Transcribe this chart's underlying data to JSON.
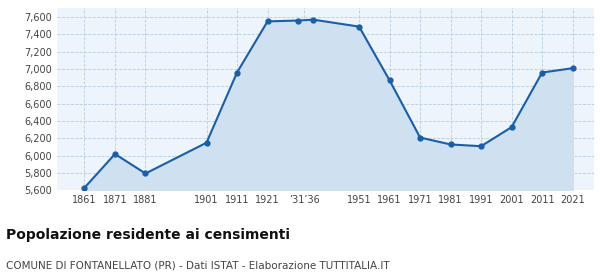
{
  "years": [
    1861,
    1871,
    1881,
    1901,
    1911,
    1921,
    1931,
    1936,
    1951,
    1961,
    1971,
    1981,
    1991,
    2001,
    2011,
    2021
  ],
  "population": [
    5630,
    6020,
    5795,
    6150,
    6960,
    7550,
    7560,
    7570,
    7490,
    6870,
    6210,
    6130,
    6110,
    6330,
    6960,
    7010
  ],
  "x_tick_labels": [
    "1861",
    "1871",
    "1881",
    "1901",
    "1911",
    "1921",
    "’31’36",
    "1951",
    "1961",
    "1971",
    "1981",
    "1991",
    "2001",
    "2011",
    "2021"
  ],
  "x_tick_positions": [
    1861,
    1871,
    1881,
    1901,
    1911,
    1921,
    1933,
    1951,
    1961,
    1971,
    1981,
    1991,
    2001,
    2011,
    2021
  ],
  "ylim": [
    5600,
    7700
  ],
  "yticks": [
    5600,
    5800,
    6000,
    6200,
    6400,
    6600,
    6800,
    7000,
    7200,
    7400,
    7600
  ],
  "line_color": "#1a5ea8",
  "fill_color": "#cfe0f0",
  "marker_color": "#1a5ea8",
  "bg_color": "#eef4fb",
  "grid_color": "#b8cde0",
  "title": "Popolazione residente ai censimenti",
  "subtitle": "COMUNE DI FONTANELLATO (PR) - Dati ISTAT - Elaborazione TUTTITALIA.IT",
  "title_fontsize": 10,
  "subtitle_fontsize": 7.5
}
